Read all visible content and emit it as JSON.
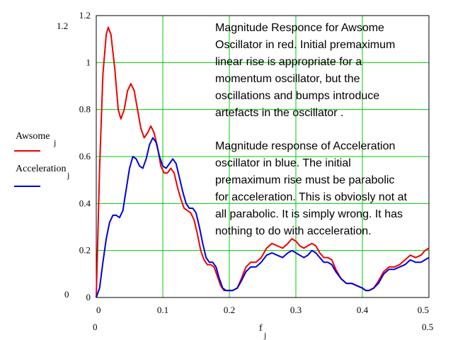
{
  "chart_data": {
    "type": "line",
    "xlabel": "f",
    "xlabel_sub": "j",
    "x_axis_range_labels": {
      "min": "0",
      "max": "0.5"
    },
    "y_axis_limit_labels": {
      "top": "1.2",
      "bottom": "0"
    },
    "xlim": [
      0,
      0.5
    ],
    "ylim": [
      0,
      1.2
    ],
    "x_ticks": [
      0,
      0.1,
      0.2,
      0.3,
      0.4,
      0.5
    ],
    "x_tick_labels": [
      "0",
      "0.1",
      "0.2",
      "0.3",
      "0.4",
      "0.5"
    ],
    "y_ticks": [
      0,
      0.2,
      0.4,
      0.6,
      0.8,
      1.0,
      1.2
    ],
    "y_tick_labels": [
      "0",
      "0.2",
      "0.4",
      "0.6",
      "0.8",
      "1",
      "1.2"
    ],
    "grid": true,
    "grid_color": "#00cc00",
    "legend_placement": "left",
    "series": [
      {
        "name": "Awsome",
        "name_sub": "j",
        "color": "#ee0000",
        "points": [
          [
            0,
            0
          ],
          [
            0.005,
            0.55
          ],
          [
            0.01,
            0.95
          ],
          [
            0.015,
            1.12
          ],
          [
            0.018,
            1.15
          ],
          [
            0.022,
            1.12
          ],
          [
            0.028,
            0.97
          ],
          [
            0.033,
            0.8
          ],
          [
            0.037,
            0.76
          ],
          [
            0.042,
            0.8
          ],
          [
            0.047,
            0.88
          ],
          [
            0.052,
            0.91
          ],
          [
            0.057,
            0.88
          ],
          [
            0.062,
            0.8
          ],
          [
            0.067,
            0.72
          ],
          [
            0.072,
            0.68
          ],
          [
            0.077,
            0.7
          ],
          [
            0.082,
            0.73
          ],
          [
            0.087,
            0.7
          ],
          [
            0.092,
            0.64
          ],
          [
            0.097,
            0.56
          ],
          [
            0.102,
            0.53
          ],
          [
            0.107,
            0.53
          ],
          [
            0.112,
            0.55
          ],
          [
            0.117,
            0.53
          ],
          [
            0.122,
            0.47
          ],
          [
            0.127,
            0.42
          ],
          [
            0.132,
            0.38
          ],
          [
            0.137,
            0.37
          ],
          [
            0.142,
            0.36
          ],
          [
            0.147,
            0.33
          ],
          [
            0.152,
            0.27
          ],
          [
            0.157,
            0.2
          ],
          [
            0.162,
            0.16
          ],
          [
            0.167,
            0.14
          ],
          [
            0.172,
            0.14
          ],
          [
            0.177,
            0.13
          ],
          [
            0.182,
            0.09
          ],
          [
            0.187,
            0.05
          ],
          [
            0.192,
            0.03
          ],
          [
            0.197,
            0.03
          ],
          [
            0.205,
            0.03
          ],
          [
            0.212,
            0.04
          ],
          [
            0.218,
            0.08
          ],
          [
            0.225,
            0.13
          ],
          [
            0.232,
            0.15
          ],
          [
            0.24,
            0.15
          ],
          [
            0.248,
            0.17
          ],
          [
            0.256,
            0.21
          ],
          [
            0.264,
            0.23
          ],
          [
            0.272,
            0.22
          ],
          [
            0.28,
            0.21
          ],
          [
            0.288,
            0.23
          ],
          [
            0.294,
            0.25
          ],
          [
            0.3,
            0.24
          ],
          [
            0.306,
            0.22
          ],
          [
            0.312,
            0.21
          ],
          [
            0.318,
            0.22
          ],
          [
            0.324,
            0.23
          ],
          [
            0.33,
            0.22
          ],
          [
            0.336,
            0.19
          ],
          [
            0.342,
            0.17
          ],
          [
            0.348,
            0.17
          ],
          [
            0.354,
            0.16
          ],
          [
            0.36,
            0.12
          ],
          [
            0.368,
            0.08
          ],
          [
            0.376,
            0.06
          ],
          [
            0.384,
            0.06
          ],
          [
            0.392,
            0.05
          ],
          [
            0.4,
            0.04
          ],
          [
            0.405,
            0.03
          ],
          [
            0.41,
            0.03
          ],
          [
            0.417,
            0.04
          ],
          [
            0.424,
            0.07
          ],
          [
            0.432,
            0.11
          ],
          [
            0.44,
            0.13
          ],
          [
            0.448,
            0.13
          ],
          [
            0.456,
            0.14
          ],
          [
            0.464,
            0.16
          ],
          [
            0.472,
            0.18
          ],
          [
            0.48,
            0.17
          ],
          [
            0.488,
            0.18
          ],
          [
            0.494,
            0.2
          ],
          [
            0.5,
            0.21
          ]
        ]
      },
      {
        "name": "Acceleration",
        "name_sub": "j",
        "color": "#0000dd",
        "points": [
          [
            0,
            0
          ],
          [
            0.005,
            0.04
          ],
          [
            0.01,
            0.15
          ],
          [
            0.015,
            0.25
          ],
          [
            0.02,
            0.32
          ],
          [
            0.025,
            0.35
          ],
          [
            0.03,
            0.35
          ],
          [
            0.035,
            0.34
          ],
          [
            0.04,
            0.37
          ],
          [
            0.045,
            0.46
          ],
          [
            0.05,
            0.55
          ],
          [
            0.055,
            0.6
          ],
          [
            0.06,
            0.59
          ],
          [
            0.065,
            0.56
          ],
          [
            0.07,
            0.55
          ],
          [
            0.075,
            0.59
          ],
          [
            0.08,
            0.65
          ],
          [
            0.085,
            0.68
          ],
          [
            0.09,
            0.66
          ],
          [
            0.095,
            0.6
          ],
          [
            0.1,
            0.56
          ],
          [
            0.105,
            0.55
          ],
          [
            0.11,
            0.57
          ],
          [
            0.115,
            0.59
          ],
          [
            0.12,
            0.57
          ],
          [
            0.125,
            0.51
          ],
          [
            0.13,
            0.45
          ],
          [
            0.135,
            0.4
          ],
          [
            0.14,
            0.38
          ],
          [
            0.145,
            0.38
          ],
          [
            0.15,
            0.36
          ],
          [
            0.155,
            0.3
          ],
          [
            0.16,
            0.23
          ],
          [
            0.165,
            0.17
          ],
          [
            0.17,
            0.15
          ],
          [
            0.175,
            0.15
          ],
          [
            0.18,
            0.13
          ],
          [
            0.185,
            0.08
          ],
          [
            0.19,
            0.04
          ],
          [
            0.195,
            0.03
          ],
          [
            0.205,
            0.03
          ],
          [
            0.212,
            0.04
          ],
          [
            0.218,
            0.07
          ],
          [
            0.225,
            0.11
          ],
          [
            0.232,
            0.13
          ],
          [
            0.24,
            0.13
          ],
          [
            0.248,
            0.15
          ],
          [
            0.256,
            0.18
          ],
          [
            0.264,
            0.19
          ],
          [
            0.272,
            0.18
          ],
          [
            0.28,
            0.17
          ],
          [
            0.288,
            0.19
          ],
          [
            0.294,
            0.2
          ],
          [
            0.3,
            0.19
          ],
          [
            0.306,
            0.18
          ],
          [
            0.312,
            0.17
          ],
          [
            0.318,
            0.18
          ],
          [
            0.324,
            0.2
          ],
          [
            0.33,
            0.19
          ],
          [
            0.336,
            0.17
          ],
          [
            0.342,
            0.15
          ],
          [
            0.348,
            0.15
          ],
          [
            0.354,
            0.14
          ],
          [
            0.36,
            0.11
          ],
          [
            0.368,
            0.08
          ],
          [
            0.376,
            0.06
          ],
          [
            0.384,
            0.06
          ],
          [
            0.392,
            0.05
          ],
          [
            0.4,
            0.04
          ],
          [
            0.405,
            0.03
          ],
          [
            0.41,
            0.03
          ],
          [
            0.417,
            0.04
          ],
          [
            0.424,
            0.06
          ],
          [
            0.432,
            0.1
          ],
          [
            0.44,
            0.12
          ],
          [
            0.448,
            0.12
          ],
          [
            0.456,
            0.13
          ],
          [
            0.464,
            0.14
          ],
          [
            0.472,
            0.16
          ],
          [
            0.48,
            0.15
          ],
          [
            0.488,
            0.15
          ],
          [
            0.494,
            0.16
          ],
          [
            0.5,
            0.17
          ]
        ]
      }
    ],
    "annotations": [
      {
        "lines": [
          "Magnitude Responce for Awsome",
          "Oscillator in red. Initial premaximum",
          "linear rise is appropriate for a",
          "momentum oscillator, but the",
          "oscillations and bumps introduce",
          "artefacts in the oscillator ."
        ]
      },
      {
        "lines": [
          "Magnitude response of Acceleration",
          "oscillator in blue. The initial",
          "premaximum rise must be parabolic",
          "for acceleration. This is obviosly not at",
          "all parabolic. It is simply wrong. It has",
          "nothing to do with acceleration."
        ]
      }
    ]
  }
}
